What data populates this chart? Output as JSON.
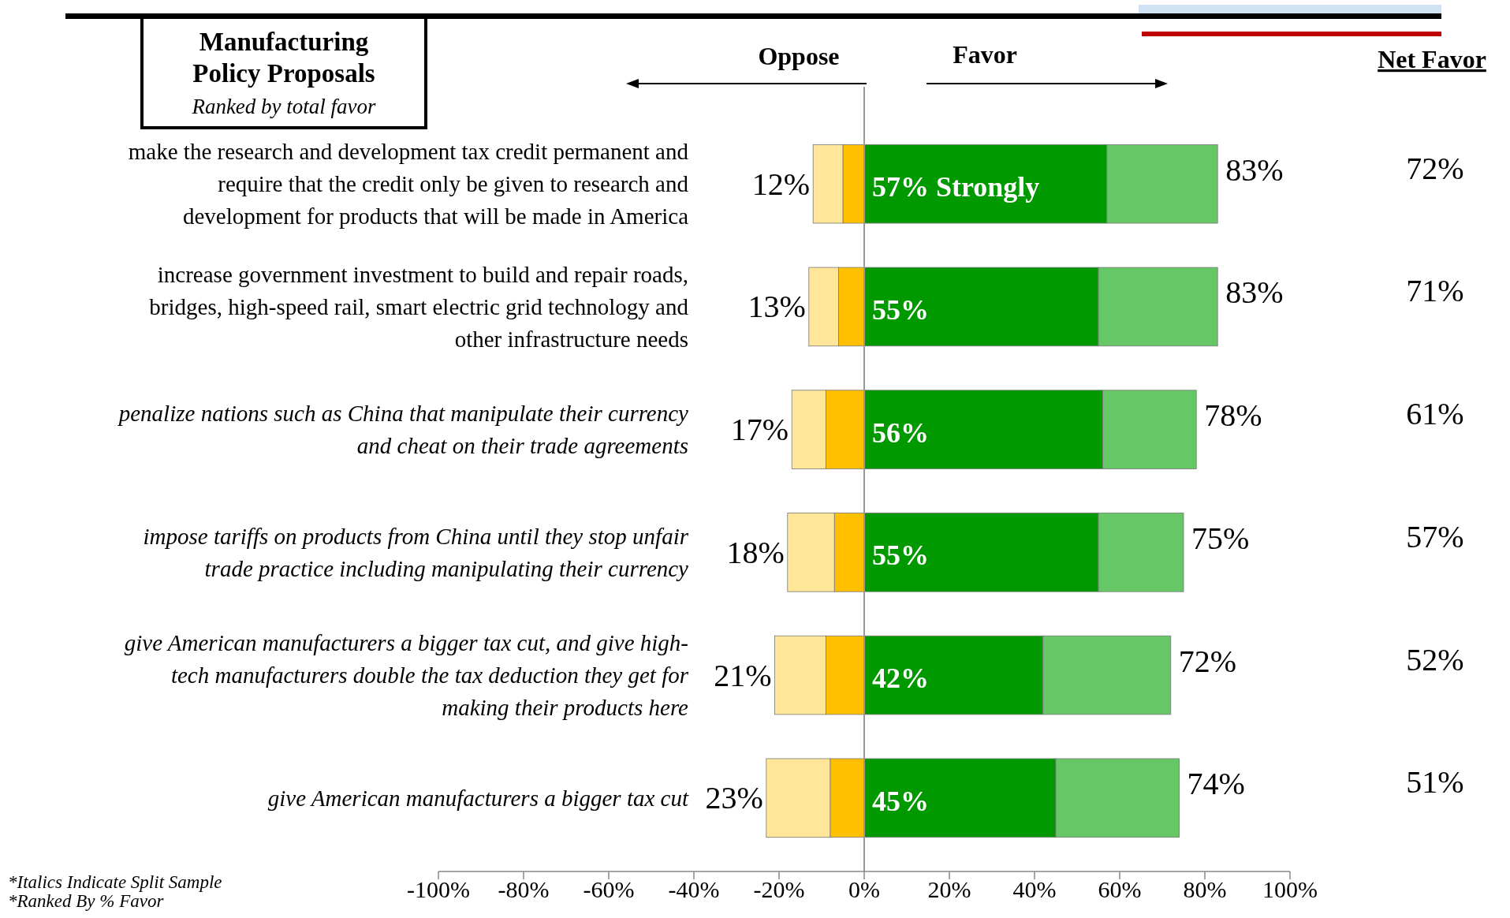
{
  "chart_data": {
    "type": "bar",
    "orientation": "horizontal",
    "stacked": true,
    "categories": [
      "make the research and development tax credit permanent and require that the credit only be given to research and development for products that will be made in America",
      "increase government investment to build and repair roads, bridges, high-speed rail, smart electric grid technology and other infrastructure needs",
      "penalize nations such as China that manipulate their currency and cheat on their trade agreements",
      "impose tariffs on products from China until they stop unfair trade practice including manipulating their currency",
      "give American manufacturers a bigger tax cut, and give high-tech manufacturers double the tax deduction they get for making their products here",
      "give American manufacturers a bigger tax cut"
    ],
    "series": [
      {
        "color": "#ffc000",
        "values": [
          -5,
          -6,
          -9,
          -7,
          -9,
          -8
        ]
      },
      {
        "color": "#ffe699",
        "values": [
          -7,
          -7,
          -8,
          -11,
          -12,
          -15
        ]
      },
      {
        "color": "#009900",
        "values": [
          57,
          55,
          56,
          55,
          42,
          45
        ],
        "value_labels": [
          "57% Strongly",
          "55%",
          "56%",
          "55%",
          "42%",
          "45%"
        ]
      },
      {
        "color": "#66c766",
        "values": [
          26,
          28,
          22,
          20,
          30,
          29
        ]
      }
    ],
    "xlim": [
      -100,
      100
    ],
    "xticks": [
      {
        "value": -100,
        "label": "-100%"
      },
      {
        "value": -80,
        "label": "-80%"
      },
      {
        "value": -60,
        "label": "-60%"
      },
      {
        "value": -40,
        "label": "-40%"
      },
      {
        "value": -20,
        "label": "-20%"
      },
      {
        "value": 0,
        "label": "0%"
      },
      {
        "value": 20,
        "label": "20%"
      },
      {
        "value": 40,
        "label": "40%"
      },
      {
        "value": 60,
        "label": "60%"
      },
      {
        "value": 80,
        "label": "80%"
      },
      {
        "value": 100,
        "label": "100%"
      }
    ],
    "ref_lines": [
      {
        "axis": "x",
        "value": 0,
        "color": "#999999"
      }
    ],
    "grid": false,
    "annotations": [
      "Oppose",
      "Favor",
      "Net Favor",
      "72%",
      "71%",
      "61%",
      "57%",
      "52%",
      "51%",
      "Manufacturing Policy Proposals",
      "Ranked by total favor",
      "*Italics Indicate Split Sample",
      "*Ranked By % Favor",
      "12%",
      "13%",
      "17%",
      "18%",
      "21%",
      "23%",
      "83%",
      "83%",
      "78%",
      "75%",
      "72%",
      "74%"
    ]
  }
}
